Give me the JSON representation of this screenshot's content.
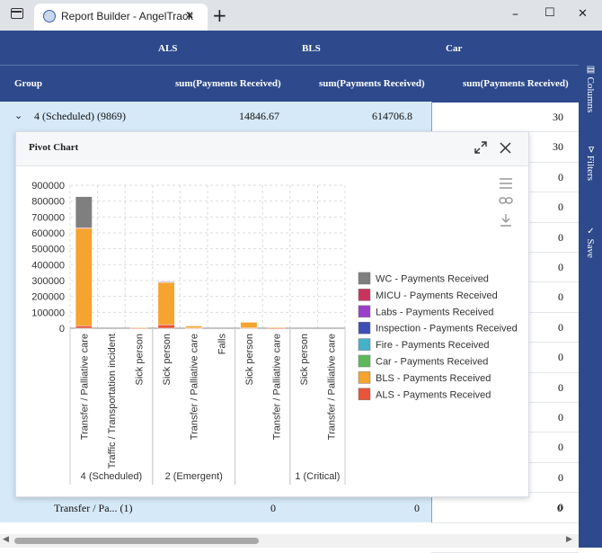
{
  "browser": {
    "tab_title": "Report Builder - AngelTrack",
    "new_tab_label": "+",
    "minimize_label": "–",
    "maximize_label": "☐",
    "close_label": "✕"
  },
  "grid": {
    "group_header": "Group",
    "column_groups": [
      "ALS",
      "BLS",
      "Car"
    ],
    "measure_header": "sum(Payments Received)",
    "first_row": {
      "label": "4 (Scheduled) (9869)",
      "als": "14846.67",
      "bls": "614706.8",
      "car": "30"
    },
    "car_column_values": [
      "30",
      "30",
      "0",
      "0",
      "0",
      "0",
      "0",
      "0",
      "0",
      "0",
      "0",
      "0",
      "0",
      "0",
      "0"
    ],
    "last_row": {
      "label": "Transfer / Pa...  (1)",
      "als": "0",
      "bls": "0",
      "car": "0"
    }
  },
  "side_panel": {
    "columns": "Columns",
    "filters": "Filters",
    "save": "Save"
  },
  "chart_panel": {
    "title": "Pivot Chart",
    "expand_icon": "expand-icon",
    "close_icon": "close-icon",
    "menu_icon": "hamburger-icon",
    "link_icon": "link-icon",
    "download_icon": "download-icon"
  },
  "chart_data": {
    "type": "bar",
    "stacked": true,
    "ylim": [
      0,
      900000
    ],
    "yticks": [
      0,
      100000,
      200000,
      300000,
      400000,
      500000,
      600000,
      700000,
      800000,
      900000
    ],
    "categories": [
      "Transfer / Palliative care",
      "Traffic / Transportation incident",
      "Sick person",
      "Sick person",
      "Transfer / Palliative care",
      "Falls",
      "Sick person",
      "Transfer / Palliative care",
      "Sick person",
      "Transfer / Palliative care"
    ],
    "groups": [
      {
        "label": "4 (Scheduled)",
        "start": 0,
        "end": 2
      },
      {
        "label": "2 (Emergent)",
        "start": 3,
        "end": 5
      },
      {
        "label": "",
        "start": 6,
        "end": 7
      },
      {
        "label": "1 (Critical)",
        "start": 8,
        "end": 9
      }
    ],
    "series": [
      {
        "name": "ALS - Payments Received",
        "color": "#e8553a",
        "values": [
          15000,
          0,
          1000,
          22000,
          2000,
          0,
          2000,
          1000,
          0,
          0
        ]
      },
      {
        "name": "BLS - Payments Received",
        "color": "#f5a430",
        "values": [
          615000,
          0,
          4000,
          265000,
          12000,
          0,
          35000,
          5000,
          0,
          0
        ]
      },
      {
        "name": "Car - Payments Received",
        "color": "#5cb85c",
        "values": [
          0,
          0,
          0,
          0,
          0,
          0,
          0,
          0,
          0,
          0
        ]
      },
      {
        "name": "Fire - Payments Received",
        "color": "#46b0c8",
        "values": [
          0,
          0,
          0,
          0,
          0,
          0,
          0,
          0,
          0,
          0
        ]
      },
      {
        "name": "Inspection - Payments Received",
        "color": "#3d4fb5",
        "values": [
          0,
          0,
          0,
          0,
          0,
          0,
          0,
          0,
          0,
          0
        ]
      },
      {
        "name": "Labs - Payments Received",
        "color": "#9b3fc9",
        "values": [
          0,
          0,
          0,
          0,
          0,
          0,
          0,
          0,
          0,
          0
        ]
      },
      {
        "name": "MICU - Payments Received",
        "color": "#c9345f",
        "values": [
          3000,
          0,
          0,
          5000,
          0,
          0,
          0,
          0,
          0,
          0
        ]
      },
      {
        "name": "WC - Payments Received",
        "color": "#7f7f7f",
        "values": [
          195000,
          0,
          0,
          2000,
          0,
          0,
          0,
          0,
          0,
          0
        ]
      }
    ],
    "legend_order": [
      "WC - Payments Received",
      "MICU - Payments Received",
      "Labs - Payments Received",
      "Inspection - Payments Received",
      "Fire - Payments Received",
      "Car - Payments Received",
      "BLS - Payments Received",
      "ALS - Payments Received"
    ],
    "legend_position": "right",
    "grid": true
  }
}
